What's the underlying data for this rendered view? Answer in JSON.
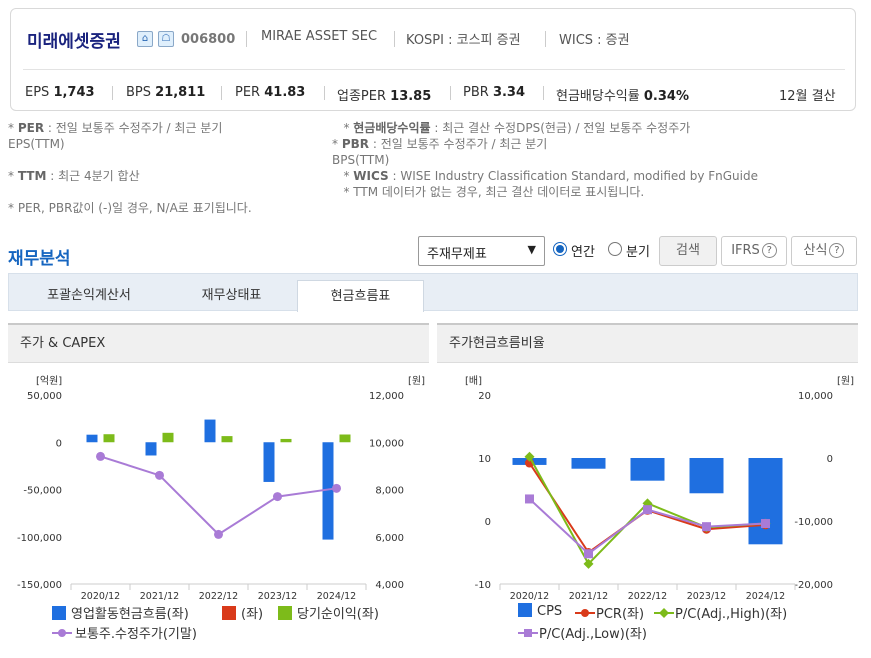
{
  "header": {
    "company_name": "미래에셋증권",
    "code": "006800",
    "eng_name": "MIRAE ASSET SEC",
    "market": "KOSPI : 코스피 증권",
    "wics": "WICS : 증권",
    "metrics": [
      {
        "label": "EPS",
        "value": "1,743"
      },
      {
        "label": "BPS",
        "value": "21,811"
      },
      {
        "label": "PER",
        "value": "41.83"
      },
      {
        "label": "업종PER",
        "value": "13.85"
      },
      {
        "label": "PBR",
        "value": "3.34"
      },
      {
        "label": "현금배당수익률",
        "value": "0.34%"
      }
    ],
    "settlement": "12월 결산"
  },
  "notes": {
    "per_key": "PER",
    "per_text": ": 전일 보통주 수정주가 / 최근 분기",
    "per_cont": "EPS(TTM)",
    "ttm_key": "TTM",
    "ttm_text": ": 최근 4분기 합산",
    "na_text": "* PER, PBR값이 (-)일 경우, N/A로 표기됩니다.",
    "div_key": "현금배당수익률",
    "div_text": ": 최근 결산 수정DPS(현금) / 전일 보통주 수정주가",
    "pbr_key": "PBR",
    "pbr_text": ": 전일 보통주 수정주가 / 최근 분기",
    "pbr_cont": "BPS(TTM)",
    "wics_key": "WICS",
    "wics_text": ": WISE Industry Classification Standard, modified by FnGuide",
    "ttm_note": "* TTM 데이터가 없는 경우, 최근 결산 데이터로 표시됩니다."
  },
  "analysis": {
    "title": "재무분석",
    "select_value": "주재무제표",
    "radio_annual": "연간",
    "radio_quarter": "분기",
    "search_label": "검색",
    "ifrs_label": "IFRS",
    "formula_label": "산식"
  },
  "tabs": [
    "포괄손익계산서",
    "재무상태표",
    "현금흐름표"
  ],
  "colors": {
    "blue": "#1f6fe0",
    "red": "#d93a1a",
    "green": "#7dbb1a",
    "purple": "#a97bd6",
    "title_blue": "#1565c0"
  },
  "chart_data": [
    {
      "type": "bar",
      "title": "주가 & CAPEX",
      "left_unit": "[억원]",
      "right_unit": "[원]",
      "categories": [
        "2020/12",
        "2021/12",
        "2022/12",
        "2023/12",
        "2024/12"
      ],
      "ylim_left": [
        -150000,
        50000
      ],
      "ylim_right": [
        4000,
        12000
      ],
      "yticks_left": [
        "50,000",
        "0",
        "-50,000",
        "-100,000",
        "-150,000"
      ],
      "yticks_right": [
        "12,000",
        "10,000",
        "8,000",
        "6,000",
        "4,000"
      ],
      "series": [
        {
          "name": "영업활동현금흐름(좌)",
          "color": "#1f6fe0",
          "kind": "bar",
          "values": [
            8000,
            -14000,
            24000,
            -42000,
            -103000
          ]
        },
        {
          "name": "(좌)",
          "color": "#d93a1a",
          "kind": "bar",
          "values": [
            0,
            0,
            0,
            0,
            0
          ]
        },
        {
          "name": "당기순이익(좌)",
          "color": "#7dbb1a",
          "kind": "bar",
          "values": [
            8500,
            10000,
            6500,
            3500,
            8200
          ]
        },
        {
          "name": "보통주.수정주가(기말)",
          "color": "#a97bd6",
          "kind": "line",
          "axis": "right",
          "values": [
            9400,
            8600,
            6100,
            7700,
            8050
          ]
        }
      ]
    },
    {
      "type": "bar",
      "title": "주가현금흐름비율",
      "left_unit": "[배]",
      "right_unit": "[원]",
      "categories": [
        "2020/12",
        "2021/12",
        "2022/12",
        "2023/12",
        "2024/12"
      ],
      "ylim_left": [
        -10,
        20
      ],
      "ylim_right": [
        -20000,
        10000
      ],
      "yticks_left": [
        "20",
        "10",
        "0",
        "-10"
      ],
      "yticks_right": [
        "10,000",
        "0",
        "-10,000",
        "-20,000"
      ],
      "series": [
        {
          "name": "CPS",
          "color": "#1f6fe0",
          "kind": "bar",
          "axis": "right",
          "values": [
            -1100,
            -1700,
            -3600,
            -5600,
            -13700
          ]
        },
        {
          "name": "PCR(좌)",
          "color": "#d93a1a",
          "kind": "line",
          "values": [
            9.2,
            -5.0,
            1.7,
            -1.3,
            -0.6
          ]
        },
        {
          "name": "P/C(Adj.,High)(좌)",
          "color": "#7dbb1a",
          "kind": "line",
          "values": [
            10.2,
            -6.8,
            2.8,
            -1.0,
            -0.4
          ]
        },
        {
          "name": "P/C(Adj.,Low)(좌)",
          "color": "#a97bd6",
          "kind": "line",
          "values": [
            3.5,
            -5.2,
            1.8,
            -0.9,
            -0.4
          ]
        }
      ]
    }
  ]
}
